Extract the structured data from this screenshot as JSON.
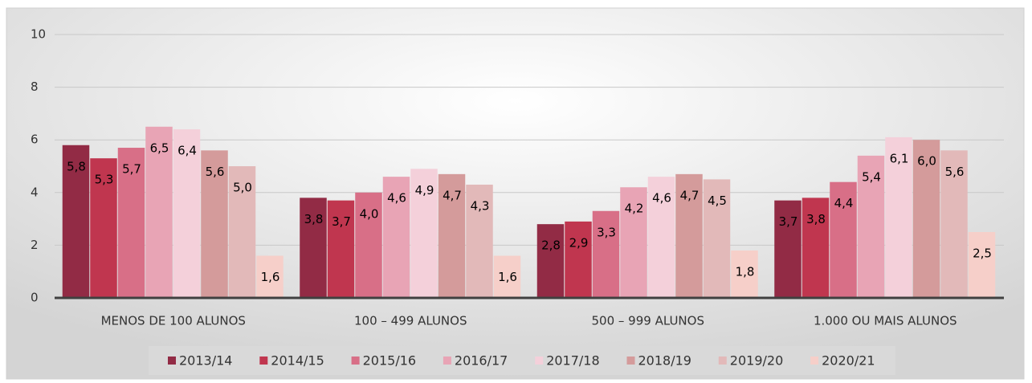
{
  "chart_data": {
    "type": "bar",
    "categories": [
      "MENOS DE 100 ALUNOS",
      "100 – 499 ALUNOS",
      "500 – 999 ALUNOS",
      "1.000 OU MAIS ALUNOS"
    ],
    "series": [
      {
        "name": "2013/14",
        "color": "#922b45",
        "values": [
          5.8,
          3.8,
          2.8,
          3.7
        ],
        "value_labels": [
          "5,8",
          "3,8",
          "2,8",
          "3,7"
        ]
      },
      {
        "name": "2014/15",
        "color": "#c0364f",
        "values": [
          5.3,
          3.7,
          2.9,
          3.8
        ],
        "value_labels": [
          "5,3",
          "3,7",
          "2,9",
          "3,8"
        ]
      },
      {
        "name": "2015/16",
        "color": "#d86f87",
        "values": [
          5.7,
          4.0,
          3.3,
          4.4
        ],
        "value_labels": [
          "5,7",
          "4,0",
          "3,3",
          "4,4"
        ]
      },
      {
        "name": "2016/17",
        "color": "#e8a4b5",
        "values": [
          6.5,
          4.6,
          4.2,
          5.4
        ],
        "value_labels": [
          "6,5",
          "4,6",
          "4,2",
          "5,4"
        ]
      },
      {
        "name": "2017/18",
        "color": "#f4d0da",
        "values": [
          6.4,
          4.9,
          4.6,
          6.1
        ],
        "value_labels": [
          "6,4",
          "4,9",
          "4,6",
          "6,1"
        ]
      },
      {
        "name": "2018/19",
        "color": "#d49b9b",
        "values": [
          5.6,
          4.7,
          4.7,
          6.0
        ],
        "value_labels": [
          "5,6",
          "4,7",
          "4,7",
          "6,0"
        ]
      },
      {
        "name": "2019/20",
        "color": "#e2b9b9",
        "values": [
          5.0,
          4.3,
          4.5,
          5.6
        ],
        "value_labels": [
          "5,0",
          "4,3",
          "4,5",
          "5,6"
        ]
      },
      {
        "name": "2020/21",
        "color": "#f6cfc9",
        "values": [
          1.6,
          1.6,
          1.8,
          2.5
        ],
        "value_labels": [
          "1,6",
          "1,6",
          "1,8",
          "2,5"
        ]
      }
    ],
    "ylim": [
      0,
      10
    ],
    "yticks": [
      0,
      2,
      4,
      6,
      8,
      10
    ],
    "grid": true,
    "legend": "bottom"
  }
}
